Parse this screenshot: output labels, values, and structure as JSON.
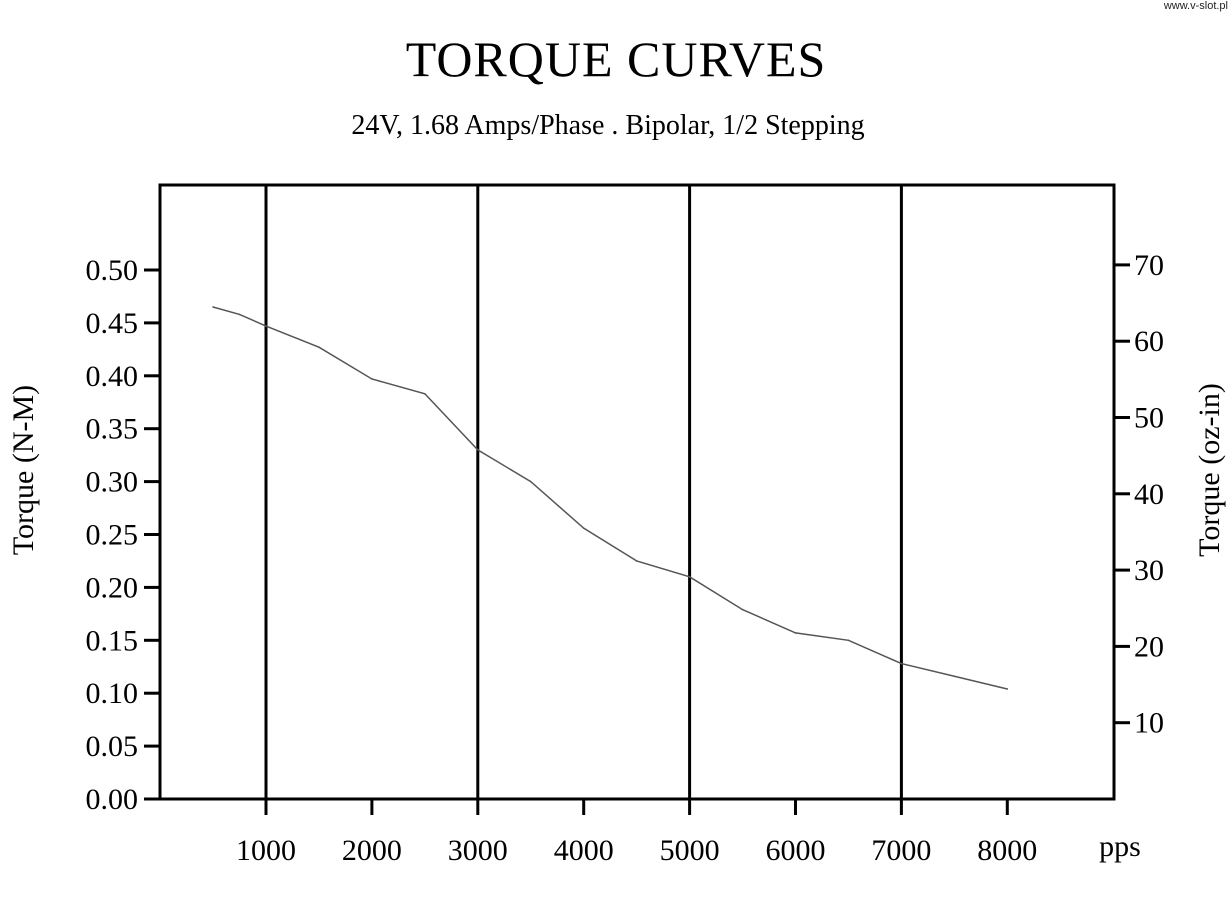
{
  "watermark": "www.v-slot.pl",
  "chart_data": {
    "type": "line",
    "title": "TORQUE CURVES",
    "subtitle": "24V, 1.68 Amps/Phase . Bipolar, 1/2 Stepping",
    "ylabel": "Torque (N-M)",
    "y2label": "Torque (oz-in)",
    "xunit": "pps",
    "xlim": [
      0,
      9000
    ],
    "ylim": [
      0,
      0.58
    ],
    "y2lim": [
      0,
      82.1
    ],
    "x_ticks": [
      1000,
      2000,
      3000,
      4000,
      5000,
      6000,
      7000,
      8000
    ],
    "y_ticks": [
      "0.00",
      "0.05",
      "0.10",
      "0.15",
      "0.20",
      "0.25",
      "0.30",
      "0.35",
      "0.40",
      "0.45",
      "0.50"
    ],
    "y2_ticks": [
      "10",
      "20",
      "30",
      "40",
      "50",
      "60",
      "70"
    ],
    "vertical_gridlines": [
      1000,
      3000,
      5000,
      7000
    ],
    "series": [
      {
        "x": [
          500,
          750,
          1000,
          1500,
          2000,
          2500,
          3000,
          3500,
          4000,
          4500,
          5000,
          5500,
          6000,
          6500,
          7000,
          7500,
          8000
        ],
        "y": [
          0.465,
          0.458,
          0.447,
          0.427,
          0.397,
          0.383,
          0.33,
          0.3,
          0.256,
          0.225,
          0.21,
          0.179,
          0.157,
          0.15,
          0.128,
          0.116,
          0.104
        ]
      }
    ]
  }
}
